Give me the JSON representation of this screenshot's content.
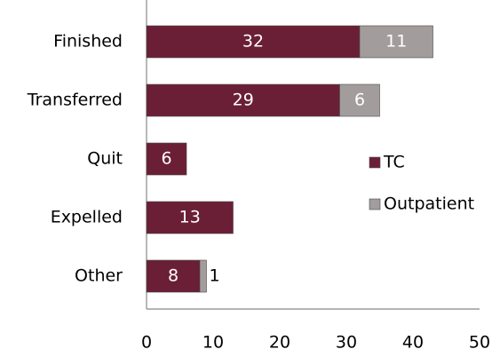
{
  "chart_data": {
    "type": "stacked-barh",
    "categories": [
      "Finished",
      "Transferred",
      "Quit",
      "Expelled",
      "Other"
    ],
    "series": [
      {
        "name": "TC",
        "color": "#6b1f36",
        "values": [
          32,
          29,
          6,
          13,
          8
        ]
      },
      {
        "name": "Outpatient",
        "color": "#a39c9d",
        "values": [
          11,
          6,
          0,
          0,
          1
        ]
      }
    ],
    "xlim": [
      0,
      50
    ],
    "xticks": [
      0,
      10,
      20,
      30,
      40,
      50
    ],
    "legend": "right"
  }
}
